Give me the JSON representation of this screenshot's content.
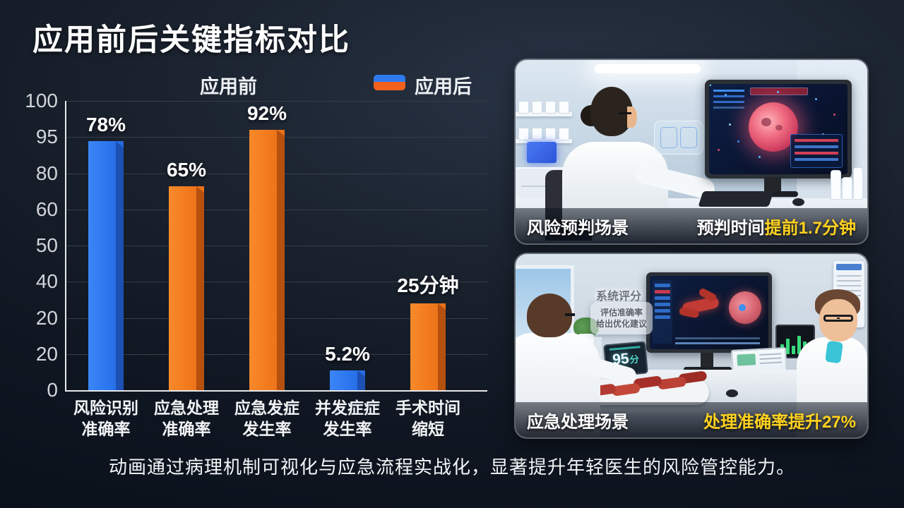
{
  "slide": {
    "title": "应用前后关键指标对比",
    "footer": "动画通过病理机制可视化与应急流程实战化，显著提升年轻医生的风险管控能力。"
  },
  "legend": {
    "before_label": "应用前",
    "after_label": "应用后"
  },
  "colors": {
    "bar_blue": "#2b76ef",
    "bar_blue_side": "#1d50b4",
    "bar_orange": "#f2791d",
    "bar_orange_side": "#b5500f",
    "highlight_yellow": "#ffd21f",
    "axis_line": "#e6e8ea",
    "gridline": "#363d46",
    "tick_label": "#d2d5d9",
    "background_dark": "#101722"
  },
  "chart_data": {
    "type": "bar",
    "title": "",
    "xlabel": "",
    "ylabel": "",
    "legend_position": "top",
    "grid": true,
    "y_axis_ticks_as_printed": [
      "100",
      "95",
      "80",
      "60",
      "50",
      "40",
      "20",
      "20",
      "0"
    ],
    "y_ticks_note": "ticks evenly spaced top-to-bottom exactly as printed in source image",
    "categories": [
      [
        "风险识别",
        "准确率"
      ],
      [
        "应急处理",
        "准确率"
      ],
      [
        "应急发症",
        "发生率"
      ],
      [
        "并发症症",
        "发生率"
      ],
      [
        "手术时间",
        "缩短"
      ]
    ],
    "bars": [
      {
        "category": "风险识别准确率",
        "value_label": "78%",
        "color": "blue",
        "drawn_height_pct": 86
      },
      {
        "category": "应急处理准确率",
        "value_label": "65%",
        "color": "orange",
        "drawn_height_pct": 70.5
      },
      {
        "category": "应急发症发生率",
        "value_label": "92%",
        "color": "orange",
        "drawn_height_pct": 90
      },
      {
        "category": "并发症症发生率",
        "value_label": "5.2%",
        "color": "blue",
        "drawn_height_pct": 6.8
      },
      {
        "category": "手术时间缩短",
        "value_label": "25分钟",
        "color": "orange",
        "drawn_height_pct": 30
      }
    ]
  },
  "panels": [
    {
      "caption": "风险预判场景",
      "metric_prefix": "预判时间",
      "metric_highlight": "提前1.7分钟"
    },
    {
      "caption": "应急处理场景",
      "metric_prefix": "",
      "metric_highlight": "处理准确率提升27%",
      "overlay_title": "系统评分",
      "overlay_line1": "评估准确率",
      "overlay_line2": "给出优化建议",
      "tablet_score_number": "95",
      "tablet_score_unit": "分"
    }
  ]
}
